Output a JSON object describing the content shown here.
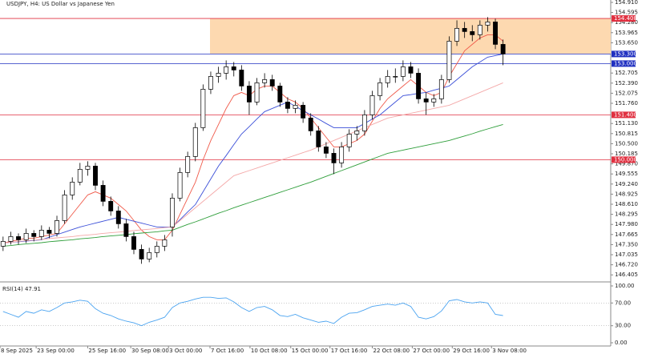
{
  "chart_data": [
    {
      "type": "candlestick",
      "title": "USDJPY, H4:  US Dollar vs Japanese Yen",
      "xlim": [
        -0.4,
        79
      ],
      "ylim": [
        146.185,
        154.985
      ],
      "up_color": "#ffffff",
      "down_color": "#000000",
      "yticks": [
        {
          "value": 154.91,
          "label": "154.910"
        },
        {
          "value": 154.595,
          "label": "154.595"
        },
        {
          "value": 154.28,
          "label": "154.280"
        },
        {
          "value": 153.965,
          "label": "153.965"
        },
        {
          "value": 153.65,
          "label": "153.650"
        },
        {
          "value": 152.705,
          "label": "152.705"
        },
        {
          "value": 152.39,
          "label": "152.390"
        },
        {
          "value": 152.075,
          "label": "152.075"
        },
        {
          "value": 151.76,
          "label": "151.760"
        },
        {
          "value": 151.13,
          "label": "151.130"
        },
        {
          "value": 150.815,
          "label": "150.815"
        },
        {
          "value": 150.5,
          "label": "150.500"
        },
        {
          "value": 150.185,
          "label": "150.185"
        },
        {
          "value": 149.87,
          "label": "149.870"
        },
        {
          "value": 149.555,
          "label": "149.555"
        },
        {
          "value": 149.24,
          "label": "149.240"
        },
        {
          "value": 148.925,
          "label": "148.925"
        },
        {
          "value": 148.61,
          "label": "148.610"
        },
        {
          "value": 148.295,
          "label": "148.295"
        },
        {
          "value": 147.98,
          "label": "147.980"
        },
        {
          "value": 147.665,
          "label": "147.665"
        },
        {
          "value": 147.35,
          "label": "147.350"
        },
        {
          "value": 147.035,
          "label": "147.035"
        },
        {
          "value": 146.72,
          "label": "146.720"
        },
        {
          "value": 146.405,
          "label": "146.405"
        }
      ],
      "zone": {
        "x": [
          26.9,
          79
        ],
        "y": [
          153.3,
          154.408
        ],
        "color": "#fdd9b0"
      },
      "levels": [
        {
          "value": 154.408,
          "label": "154.408",
          "color": "#e03040"
        },
        {
          "value": 153.3,
          "label": "153.300",
          "color": "#2030c0"
        },
        {
          "value": 153.0,
          "label": "153.000",
          "color": "#2030c0"
        },
        {
          "value": 151.4,
          "label": "151.400",
          "color": "#e03040"
        },
        {
          "value": 150.0,
          "label": "150.000",
          "color": "#e03040"
        }
      ],
      "ohlc": [
        [
          147.3,
          147.6,
          147.15,
          147.45
        ],
        [
          147.45,
          147.75,
          147.35,
          147.6
        ],
        [
          147.6,
          147.7,
          147.35,
          147.5
        ],
        [
          147.5,
          147.85,
          147.4,
          147.7
        ],
        [
          147.7,
          147.8,
          147.45,
          147.6
        ],
        [
          147.6,
          147.95,
          147.5,
          147.8
        ],
        [
          147.8,
          147.9,
          147.55,
          147.7
        ],
        [
          147.7,
          148.25,
          147.6,
          148.1
        ],
        [
          148.1,
          149.05,
          148.0,
          148.9
        ],
        [
          148.9,
          149.45,
          148.75,
          149.3
        ],
        [
          149.3,
          149.9,
          149.2,
          149.7
        ],
        [
          149.7,
          149.95,
          149.5,
          149.8
        ],
        [
          149.8,
          149.9,
          149.05,
          149.2
        ],
        [
          149.2,
          149.35,
          148.55,
          148.7
        ],
        [
          148.7,
          148.85,
          148.25,
          148.4
        ],
        [
          148.4,
          148.55,
          147.85,
          148.0
        ],
        [
          148.0,
          148.15,
          147.45,
          147.6
        ],
        [
          147.6,
          147.75,
          147.05,
          147.2
        ],
        [
          147.2,
          147.35,
          146.75,
          146.9
        ],
        [
          146.9,
          147.25,
          146.8,
          147.1
        ],
        [
          147.1,
          147.45,
          146.95,
          147.3
        ],
        [
          147.3,
          147.65,
          147.15,
          147.5
        ],
        [
          147.9,
          148.95,
          147.6,
          148.8
        ],
        [
          148.8,
          149.75,
          148.7,
          149.6
        ],
        [
          149.6,
          150.25,
          149.45,
          150.1
        ],
        [
          150.1,
          151.15,
          149.95,
          151.0
        ],
        [
          151.0,
          152.35,
          150.9,
          152.2
        ],
        [
          152.2,
          152.75,
          152.05,
          152.6
        ],
        [
          152.6,
          152.9,
          152.4,
          152.7
        ],
        [
          152.7,
          153.1,
          152.5,
          152.9
        ],
        [
          152.9,
          153.05,
          152.6,
          152.8
        ],
        [
          152.8,
          152.95,
          152.15,
          152.3
        ],
        [
          152.3,
          152.45,
          151.4,
          151.8
        ],
        [
          151.8,
          152.55,
          151.7,
          152.4
        ],
        [
          152.4,
          152.7,
          152.25,
          152.5
        ],
        [
          152.5,
          152.65,
          152.15,
          152.3
        ],
        [
          152.3,
          152.4,
          151.65,
          151.8
        ],
        [
          151.8,
          151.95,
          151.45,
          151.6
        ],
        [
          151.6,
          151.85,
          151.45,
          151.7
        ],
        [
          151.7,
          151.8,
          151.15,
          151.3
        ],
        [
          151.3,
          151.45,
          150.75,
          150.9
        ],
        [
          150.9,
          151.05,
          150.25,
          150.4
        ],
        [
          150.4,
          150.55,
          150.05,
          150.2
        ],
        [
          150.2,
          150.35,
          149.55,
          149.9
        ],
        [
          149.9,
          150.55,
          149.75,
          150.4
        ],
        [
          150.4,
          150.95,
          150.25,
          150.8
        ],
        [
          150.8,
          151.05,
          150.6,
          150.9
        ],
        [
          150.9,
          151.55,
          150.75,
          151.4
        ],
        [
          151.4,
          152.15,
          151.25,
          152.0
        ],
        [
          152.0,
          152.55,
          151.85,
          152.4
        ],
        [
          152.4,
          152.8,
          152.25,
          152.6
        ],
        [
          152.6,
          152.85,
          152.4,
          152.6
        ],
        [
          152.6,
          153.1,
          152.45,
          152.9
        ],
        [
          152.9,
          153.05,
          152.55,
          152.7
        ],
        [
          152.7,
          152.85,
          151.75,
          151.9
        ],
        [
          151.9,
          152.1,
          151.4,
          151.8
        ],
        [
          151.8,
          152.05,
          151.65,
          151.9
        ],
        [
          151.9,
          152.65,
          151.75,
          152.5
        ],
        [
          152.5,
          153.85,
          152.4,
          153.7
        ],
        [
          153.7,
          154.35,
          153.55,
          154.1
        ],
        [
          154.1,
          154.3,
          153.8,
          154.0
        ],
        [
          154.0,
          154.2,
          153.7,
          153.9
        ],
        [
          153.9,
          154.35,
          153.75,
          154.2
        ],
        [
          154.2,
          154.45,
          154.0,
          154.3
        ],
        [
          154.3,
          154.4,
          153.45,
          153.6
        ],
        [
          153.6,
          153.75,
          152.95,
          153.3
        ]
      ],
      "series": [
        {
          "color": "#f05a4a",
          "values": [
            147.4,
            147.45,
            147.5,
            147.55,
            147.55,
            147.6,
            147.65,
            147.7,
            148.0,
            148.3,
            148.6,
            148.9,
            149.0,
            148.9,
            148.8,
            148.6,
            148.4,
            148.1,
            147.8,
            147.6,
            147.5,
            147.5,
            147.8,
            148.3,
            148.8,
            149.3,
            150.0,
            150.6,
            151.1,
            151.6,
            152.0,
            152.1,
            152.0,
            152.2,
            152.3,
            152.3,
            152.1,
            151.9,
            151.8,
            151.6,
            151.3,
            151.0,
            150.7,
            150.4,
            150.4,
            150.5,
            150.6,
            150.8,
            151.2,
            151.6,
            151.9,
            152.1,
            152.3,
            152.5,
            152.3,
            152.1,
            152.0,
            152.1,
            152.6,
            153.0,
            153.4,
            153.6,
            153.8,
            153.9,
            153.9,
            153.7
          ]
        },
        {
          "color": "#3b4fd8",
          "values": [
            147.4,
            147.42,
            147.44,
            147.46,
            147.48,
            147.5,
            147.58,
            147.66,
            147.74,
            147.82,
            147.9,
            147.96,
            148.02,
            148.08,
            148.14,
            148.2,
            148.14,
            148.08,
            148.02,
            147.96,
            147.9,
            147.9,
            147.9,
            148.13,
            148.37,
            148.6,
            149.0,
            149.4,
            149.8,
            150.13,
            150.47,
            150.8,
            151.03,
            151.27,
            151.5,
            151.6,
            151.7,
            151.8,
            151.67,
            151.53,
            151.4,
            151.27,
            151.13,
            151.0,
            151.0,
            151.0,
            151.0,
            151.13,
            151.27,
            151.4,
            151.6,
            151.8,
            152.0,
            152.03,
            152.07,
            152.1,
            152.17,
            152.23,
            152.3,
            152.5,
            152.7,
            152.9,
            153.05,
            153.2,
            153.25,
            153.3
          ]
        },
        {
          "color": "#f4a8a8",
          "values": [
            147.4,
            147.42,
            147.45,
            147.47,
            147.49,
            147.51,
            147.54,
            147.56,
            147.58,
            147.6,
            147.63,
            147.65,
            147.67,
            147.7,
            147.72,
            147.74,
            147.76,
            147.79,
            147.81,
            147.83,
            147.85,
            147.88,
            147.9,
            148.1,
            148.3,
            148.5,
            148.7,
            148.9,
            149.1,
            149.3,
            149.5,
            149.58,
            149.66,
            149.74,
            149.82,
            149.9,
            149.98,
            150.06,
            150.14,
            150.22,
            150.3,
            150.4,
            150.5,
            150.6,
            150.7,
            150.8,
            150.9,
            151.0,
            151.1,
            151.2,
            151.3,
            151.35,
            151.4,
            151.45,
            151.5,
            151.55,
            151.6,
            151.65,
            151.7,
            151.8,
            151.9,
            152.0,
            152.1,
            152.2,
            152.3,
            152.4
          ]
        },
        {
          "color": "#2e9e3a",
          "values": [
            147.3,
            147.32,
            147.35,
            147.37,
            147.39,
            147.41,
            147.44,
            147.46,
            147.48,
            147.5,
            147.53,
            147.55,
            147.57,
            147.6,
            147.62,
            147.64,
            147.66,
            147.69,
            147.71,
            147.73,
            147.75,
            147.78,
            147.8,
            147.89,
            147.98,
            148.06,
            148.15,
            148.24,
            148.33,
            148.41,
            148.5,
            148.58,
            148.66,
            148.74,
            148.82,
            148.9,
            148.98,
            149.06,
            149.14,
            149.22,
            149.3,
            149.39,
            149.48,
            149.57,
            149.66,
            149.75,
            149.84,
            149.93,
            150.02,
            150.11,
            150.2,
            150.25,
            150.3,
            150.35,
            150.4,
            150.45,
            150.5,
            150.55,
            150.6,
            150.67,
            150.74,
            150.81,
            150.89,
            150.96,
            151.03,
            151.1
          ]
        }
      ]
    },
    {
      "type": "line",
      "title": "RSI(14) 47.91",
      "xlim": [
        -0.4,
        79
      ],
      "ylim": [
        0,
        100
      ],
      "yticks": [
        {
          "value": 100,
          "label": "100.00"
        },
        {
          "value": 70,
          "label": "70.00"
        },
        {
          "value": 30,
          "label": "30.00"
        },
        {
          "value": 0,
          "label": "0.00"
        }
      ],
      "levels": [
        70,
        30
      ],
      "xticks": [
        {
          "value": -0.4,
          "label": "8 Sep 2025"
        },
        {
          "value": 4.3,
          "label": "23 Sep 00:00"
        },
        {
          "value": 11.0,
          "label": "25 Sep 16:00"
        },
        {
          "value": 16.6,
          "label": "30 Sep 08:00"
        },
        {
          "value": 21.5,
          "label": "3 Oct 00:00"
        },
        {
          "value": 26.9,
          "label": "7 Oct 16:00"
        },
        {
          "value": 32.1,
          "label": "10 Oct 08:00"
        },
        {
          "value": 37.4,
          "label": "15 Oct 00:00"
        },
        {
          "value": 42.5,
          "label": "17 Oct 16:00"
        },
        {
          "value": 48.0,
          "label": "22 Oct 08:00"
        },
        {
          "value": 53.2,
          "label": "27 Oct 00:00"
        },
        {
          "value": 58.4,
          "label": "29 Oct 16:00"
        },
        {
          "value": 63.5,
          "label": "3 Nov 08:00"
        }
      ],
      "series": [
        {
          "color": "#4aa3f0",
          "values": [
            55,
            50,
            45,
            55,
            52,
            58,
            55,
            62,
            70,
            72,
            75,
            73,
            60,
            52,
            48,
            42,
            38,
            35,
            30,
            36,
            40,
            45,
            62,
            70,
            73,
            77,
            80,
            80,
            78,
            79,
            72,
            62,
            55,
            62,
            64,
            58,
            48,
            46,
            50,
            44,
            40,
            36,
            38,
            34,
            45,
            52,
            53,
            58,
            64,
            66,
            68,
            66,
            70,
            64,
            45,
            42,
            46,
            56,
            74,
            76,
            72,
            70,
            72,
            70,
            50,
            47.91
          ]
        }
      ]
    }
  ]
}
